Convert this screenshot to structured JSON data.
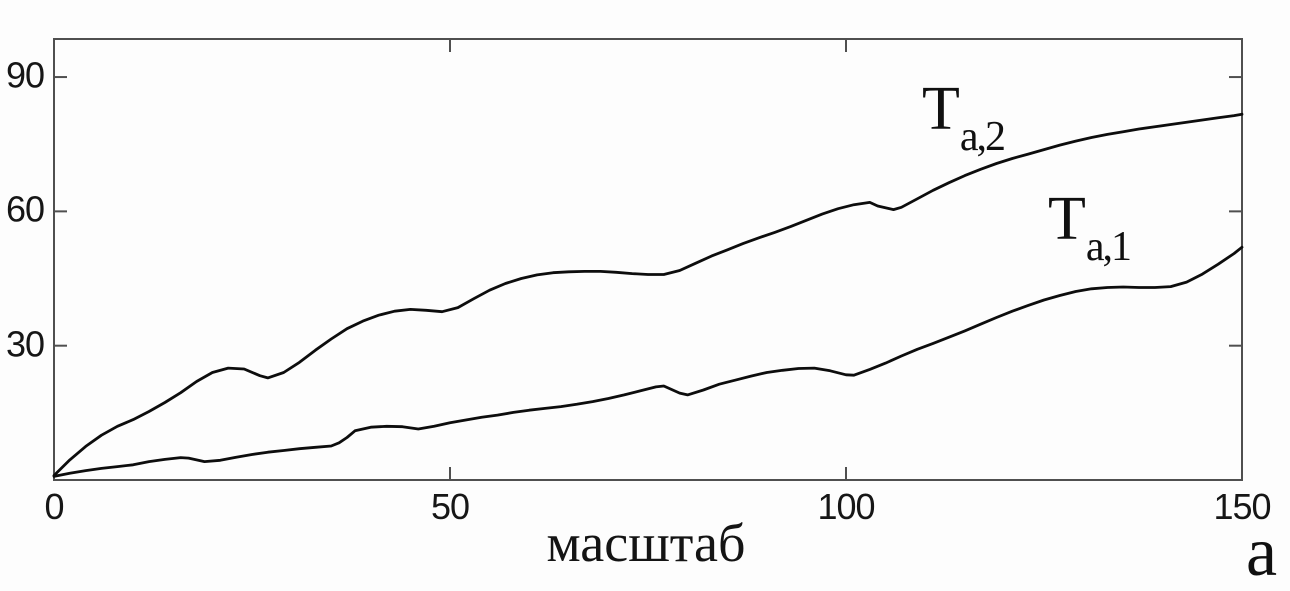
{
  "figure": {
    "panel_label": "а",
    "colors": {
      "background": "#fdfdfd",
      "curve": "#0d0d0d",
      "axis": "#4f4f4f",
      "text": "#141414"
    }
  },
  "chart_data": {
    "type": "line",
    "title": "",
    "xlabel": "масштаб",
    "ylabel": "",
    "xlim": [
      0,
      150
    ],
    "ylim": [
      0,
      98.5
    ],
    "xticks": [
      0,
      50,
      100,
      150
    ],
    "yticks": [
      30,
      60,
      90
    ],
    "grid": false,
    "box": true,
    "tick_style": "inward-mirrored",
    "legend_position": "inline-annotations",
    "annotations": [
      {
        "label_main": "T",
        "label_sub": "a,2",
        "near_x": 113,
        "near_y": 80
      },
      {
        "label_main": "T",
        "label_sub": "a,1",
        "near_x": 129,
        "near_y": 55
      }
    ],
    "series": [
      {
        "name": "Ta,2",
        "x": [
          0,
          2,
          4,
          6,
          8,
          10,
          12,
          14,
          16,
          18,
          20,
          22,
          24,
          26,
          27,
          29,
          31,
          33,
          35,
          37,
          39,
          41,
          43,
          45,
          47,
          49,
          51,
          53,
          55,
          57,
          59,
          61,
          63,
          65,
          67,
          69,
          71,
          73,
          75,
          77,
          79,
          81,
          83,
          85,
          87,
          89,
          91,
          93,
          95,
          97,
          99,
          101,
          103,
          104,
          106,
          107,
          109,
          111,
          113,
          115,
          117,
          119,
          121,
          123,
          125,
          127,
          129,
          131,
          133,
          135,
          137,
          139,
          141,
          143,
          145,
          147,
          149,
          150
        ],
        "y": [
          1,
          4.5,
          7.5,
          10,
          12,
          13.5,
          15.3,
          17.3,
          19.5,
          22,
          24,
          25,
          24.8,
          23.3,
          22.8,
          24,
          26.3,
          29,
          31.5,
          33.8,
          35.5,
          36.8,
          37.7,
          38.1,
          37.9,
          37.6,
          38.5,
          40.5,
          42.4,
          43.9,
          45,
          45.8,
          46.3,
          46.5,
          46.6,
          46.6,
          46.4,
          46.1,
          45.9,
          45.9,
          46.8,
          48.4,
          50,
          51.4,
          52.8,
          54.1,
          55.3,
          56.6,
          58,
          59.4,
          60.6,
          61.5,
          62,
          61.2,
          60.4,
          60.9,
          62.8,
          64.7,
          66.4,
          68,
          69.4,
          70.7,
          71.8,
          72.8,
          73.8,
          74.8,
          75.7,
          76.5,
          77.2,
          77.8,
          78.4,
          78.9,
          79.4,
          79.9,
          80.4,
          80.9,
          81.4,
          81.7
        ]
      },
      {
        "name": "Ta,1",
        "x": [
          0,
          2,
          4,
          6,
          8,
          10,
          12,
          14,
          16,
          17,
          19,
          21,
          23,
          25,
          27,
          29,
          31,
          33,
          35,
          36,
          37,
          38,
          40,
          42,
          44,
          46,
          48,
          50,
          52,
          54,
          56,
          58,
          60,
          62,
          64,
          66,
          68,
          70,
          72,
          74,
          76,
          77,
          79,
          80,
          82,
          84,
          86,
          88,
          90,
          92,
          94,
          96,
          98,
          100,
          101,
          103,
          105,
          107,
          109,
          111,
          113,
          115,
          117,
          119,
          121,
          123,
          125,
          127,
          129,
          131,
          133,
          135,
          137,
          139,
          141,
          143,
          145,
          147,
          149,
          150
        ],
        "y": [
          0.8,
          1.5,
          2.1,
          2.6,
          3,
          3.4,
          4.1,
          4.6,
          5,
          4.9,
          4.1,
          4.4,
          5.1,
          5.7,
          6.2,
          6.6,
          7,
          7.3,
          7.6,
          8.3,
          9.5,
          11,
          11.8,
          12,
          11.9,
          11.4,
          12,
          12.8,
          13.4,
          14,
          14.5,
          15.1,
          15.6,
          16,
          16.4,
          16.9,
          17.5,
          18.2,
          19,
          19.9,
          20.8,
          21,
          19.4,
          19,
          20.1,
          21.4,
          22.3,
          23.2,
          24,
          24.5,
          24.9,
          25,
          24.4,
          23.5,
          23.4,
          24.7,
          26.1,
          27.7,
          29.2,
          30.5,
          31.9,
          33.3,
          34.8,
          36.3,
          37.7,
          39,
          40.2,
          41.2,
          42.1,
          42.7,
          43,
          43.1,
          43,
          43,
          43.2,
          44.2,
          46,
          48.2,
          50.6,
          52
        ]
      }
    ]
  }
}
